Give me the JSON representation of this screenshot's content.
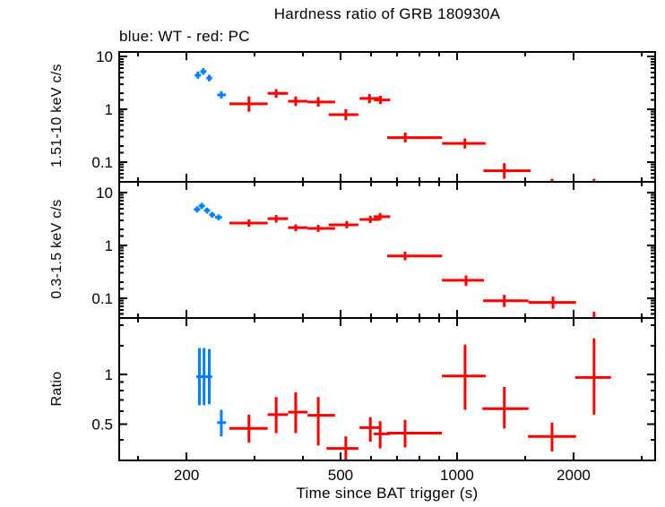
{
  "chart_data": {
    "type": "scatter",
    "title": "Hardness ratio of GRB 180930A",
    "subtitle": "blue: WT - red: PC",
    "xlabel": "Time since BAT trigger (s)",
    "legend": {
      "blue_series": "WT",
      "red_series": "PC"
    },
    "colors": {
      "wt": "#0080ff",
      "pc": "#ff0000",
      "axis": "#000000"
    },
    "x_axis": {
      "scale": "log",
      "range": [
        134,
        3250
      ],
      "major_ticks": [
        200,
        500,
        1000,
        2000
      ],
      "major_tick_labels": [
        "200",
        "500",
        "1000",
        "2000"
      ],
      "minor_ticks": [
        150,
        300,
        400,
        600,
        700,
        800,
        900,
        1500,
        3000
      ]
    },
    "panels": [
      {
        "ylabel": "1.51-10 keV c/s",
        "scale": "log",
        "ylim": [
          0.042,
          12.2
        ],
        "major_ticks": [
          10,
          1,
          0.1
        ],
        "major_tick_labels": [
          "10",
          "1",
          "0.1"
        ],
        "minor_ticks": [
          0.05,
          0.06,
          0.07,
          0.08,
          0.09,
          0.15,
          0.2,
          0.3,
          0.4,
          0.5,
          0.6,
          0.7,
          0.8,
          0.9,
          1.5,
          2,
          3,
          4,
          5,
          6,
          7,
          8,
          9
        ],
        "series": [
          {
            "name": "WT",
            "color_key": "wt",
            "points": [
              {
                "t": 214,
                "t_lo": 210,
                "t_hi": 218,
                "v": 4.4,
                "v_lo": 3.8,
                "v_hi": 5.2
              },
              {
                "t": 221,
                "t_lo": 217,
                "t_hi": 225,
                "v": 5.2,
                "v_lo": 4.5,
                "v_hi": 6.0
              },
              {
                "t": 229,
                "t_lo": 225,
                "t_hi": 233,
                "v": 3.9,
                "v_lo": 3.4,
                "v_hi": 4.5
              },
              {
                "t": 246,
                "t_lo": 240,
                "t_hi": 253,
                "v": 1.87,
                "v_lo": 1.6,
                "v_hi": 2.2
              }
            ]
          },
          {
            "name": "PC",
            "color_key": "pc",
            "points": [
              {
                "t": 290,
                "t_lo": 258,
                "t_hi": 324,
                "v": 1.27,
                "v_lo": 0.9,
                "v_hi": 1.75
              },
              {
                "t": 341,
                "t_lo": 324,
                "t_hi": 366,
                "v": 2.0,
                "v_lo": 1.65,
                "v_hi": 2.4
              },
              {
                "t": 383,
                "t_lo": 366,
                "t_hi": 411,
                "v": 1.42,
                "v_lo": 1.15,
                "v_hi": 1.75
              },
              {
                "t": 438,
                "t_lo": 411,
                "t_hi": 484,
                "v": 1.37,
                "v_lo": 1.12,
                "v_hi": 1.7
              },
              {
                "t": 516,
                "t_lo": 466,
                "t_hi": 556,
                "v": 0.79,
                "v_lo": 0.62,
                "v_hi": 1.0
              },
              {
                "t": 594,
                "t_lo": 560,
                "t_hi": 630,
                "v": 1.6,
                "v_lo": 1.3,
                "v_hi": 1.95
              },
              {
                "t": 634,
                "t_lo": 610,
                "t_hi": 672,
                "v": 1.5,
                "v_lo": 1.25,
                "v_hi": 1.8
              },
              {
                "t": 735,
                "t_lo": 660,
                "t_hi": 915,
                "v": 0.29,
                "v_lo": 0.235,
                "v_hi": 0.36
              },
              {
                "t": 1048,
                "t_lo": 915,
                "t_hi": 1185,
                "v": 0.225,
                "v_lo": 0.18,
                "v_hi": 0.28
              },
              {
                "t": 1325,
                "t_lo": 1170,
                "t_hi": 1550,
                "v": 0.068,
                "v_lo": 0.048,
                "v_hi": 0.095
              },
              {
                "t": 1760,
                "v": null,
                "v_hi": 0.048,
                "offscale": "below"
              },
              {
                "t": 2260,
                "v": null,
                "v_hi": 0.048,
                "offscale": "below"
              }
            ]
          }
        ]
      },
      {
        "ylabel": "0.3-1.5 keV c/s",
        "scale": "log",
        "ylim": [
          0.042,
          16
        ],
        "major_ticks": [
          10,
          1,
          0.1
        ],
        "major_tick_labels": [
          "10",
          "1",
          "0.1"
        ],
        "minor_ticks": [
          0.05,
          0.06,
          0.07,
          0.08,
          0.09,
          0.15,
          0.2,
          0.3,
          0.4,
          0.5,
          0.6,
          0.7,
          0.8,
          0.9,
          1.5,
          2,
          3,
          4,
          5,
          6,
          7,
          8,
          9
        ],
        "series": [
          {
            "name": "WT",
            "color_key": "wt",
            "points": [
              {
                "t": 213,
                "t_lo": 209,
                "t_hi": 217,
                "v": 4.8,
                "v_lo": 4.2,
                "v_hi": 5.5
              },
              {
                "t": 219,
                "t_lo": 215,
                "t_hi": 223,
                "v": 5.6,
                "v_lo": 4.9,
                "v_hi": 6.4
              },
              {
                "t": 226,
                "t_lo": 222,
                "t_hi": 230,
                "v": 4.6,
                "v_lo": 4.0,
                "v_hi": 5.2
              },
              {
                "t": 233,
                "t_lo": 229,
                "t_hi": 237,
                "v": 3.8,
                "v_lo": 3.35,
                "v_hi": 4.3
              },
              {
                "t": 242,
                "t_lo": 237,
                "t_hi": 247,
                "v": 3.4,
                "v_lo": 3.0,
                "v_hi": 3.85
              }
            ]
          },
          {
            "name": "PC",
            "color_key": "pc",
            "points": [
              {
                "t": 290,
                "t_lo": 258,
                "t_hi": 324,
                "v": 2.65,
                "v_lo": 2.25,
                "v_hi": 3.1
              },
              {
                "t": 341,
                "t_lo": 324,
                "t_hi": 366,
                "v": 3.2,
                "v_lo": 2.7,
                "v_hi": 3.75
              },
              {
                "t": 383,
                "t_lo": 366,
                "t_hi": 411,
                "v": 2.17,
                "v_lo": 1.85,
                "v_hi": 2.5
              },
              {
                "t": 438,
                "t_lo": 411,
                "t_hi": 484,
                "v": 2.1,
                "v_lo": 1.8,
                "v_hi": 2.45
              },
              {
                "t": 519,
                "t_lo": 466,
                "t_hi": 556,
                "v": 2.45,
                "v_lo": 2.1,
                "v_hi": 2.9
              },
              {
                "t": 597,
                "t_lo": 560,
                "t_hi": 630,
                "v": 3.1,
                "v_lo": 2.65,
                "v_hi": 3.65
              },
              {
                "t": 633,
                "t_lo": 609,
                "t_hi": 672,
                "v": 3.5,
                "v_lo": 3.0,
                "v_hi": 4.1
              },
              {
                "t": 734,
                "t_lo": 660,
                "t_hi": 915,
                "v": 0.63,
                "v_lo": 0.52,
                "v_hi": 0.76
              },
              {
                "t": 1055,
                "t_lo": 914,
                "t_hi": 1174,
                "v": 0.218,
                "v_lo": 0.17,
                "v_hi": 0.27
              },
              {
                "t": 1325,
                "t_lo": 1168,
                "t_hi": 1530,
                "v": 0.089,
                "v_lo": 0.068,
                "v_hi": 0.115
              },
              {
                "t": 1770,
                "t_lo": 1530,
                "t_hi": 2030,
                "v": 0.083,
                "v_lo": 0.063,
                "v_hi": 0.107
              },
              {
                "t": 2260,
                "v": null,
                "v_hi": 0.055,
                "offscale": "below"
              }
            ]
          }
        ]
      },
      {
        "ylabel": "Ratio",
        "scale": "log",
        "ylim": [
          0.3,
          2.21
        ],
        "major_ticks": [
          1,
          0.5
        ],
        "major_tick_labels": [
          "1",
          "0.5"
        ],
        "minor_ticks": [
          0.3,
          0.4,
          0.6,
          0.7,
          0.8,
          0.9,
          1.5,
          2
        ],
        "series": [
          {
            "name": "WT",
            "color_key": "wt",
            "points": [
              {
                "t": 216,
                "t_lo": 212,
                "t_hi": 220,
                "v": 0.97,
                "v_lo": 0.65,
                "v_hi": 1.45
              },
              {
                "t": 222,
                "t_lo": 218,
                "t_hi": 226,
                "v": 0.97,
                "v_lo": 0.65,
                "v_hi": 1.45
              },
              {
                "t": 229,
                "t_lo": 225,
                "t_hi": 233,
                "v": 0.97,
                "v_lo": 0.66,
                "v_hi": 1.43
              },
              {
                "t": 246,
                "t_lo": 240,
                "t_hi": 253,
                "v": 0.51,
                "v_lo": 0.42,
                "v_hi": 0.61
              }
            ]
          },
          {
            "name": "PC",
            "color_key": "pc",
            "points": [
              {
                "t": 290,
                "t_lo": 258,
                "t_hi": 324,
                "v": 0.47,
                "v_lo": 0.385,
                "v_hi": 0.57
              },
              {
                "t": 341,
                "t_lo": 324,
                "t_hi": 366,
                "v": 0.57,
                "v_lo": 0.44,
                "v_hi": 0.73
              },
              {
                "t": 383,
                "t_lo": 366,
                "t_hi": 411,
                "v": 0.59,
                "v_lo": 0.44,
                "v_hi": 0.78
              },
              {
                "t": 438,
                "t_lo": 411,
                "t_hi": 484,
                "v": 0.565,
                "v_lo": 0.37,
                "v_hi": 0.73
              },
              {
                "t": 516,
                "t_lo": 460,
                "t_hi": 556,
                "v": 0.355,
                "v_lo": 0.3,
                "v_hi": 0.42
              },
              {
                "t": 597,
                "t_lo": 560,
                "t_hi": 630,
                "v": 0.475,
                "v_lo": 0.39,
                "v_hi": 0.55
              },
              {
                "t": 633,
                "t_lo": 609,
                "t_hi": 672,
                "v": 0.435,
                "v_lo": 0.355,
                "v_hi": 0.52
              },
              {
                "t": 734,
                "t_lo": 660,
                "t_hi": 914,
                "v": 0.44,
                "v_lo": 0.36,
                "v_hi": 0.53
              },
              {
                "t": 1049,
                "t_lo": 914,
                "t_hi": 1185,
                "v": 0.98,
                "v_lo": 0.61,
                "v_hi": 1.52
              },
              {
                "t": 1325,
                "t_lo": 1163,
                "t_hi": 1530,
                "v": 0.62,
                "v_lo": 0.47,
                "v_hi": 0.84
              },
              {
                "t": 1760,
                "t_lo": 1525,
                "t_hi": 2030,
                "v": 0.42,
                "v_lo": 0.34,
                "v_hi": 0.51
              },
              {
                "t": 2260,
                "t_lo": 2020,
                "t_hi": 2500,
                "v": 0.96,
                "v_lo": 0.57,
                "v_hi": 1.66
              }
            ]
          }
        ]
      }
    ]
  }
}
